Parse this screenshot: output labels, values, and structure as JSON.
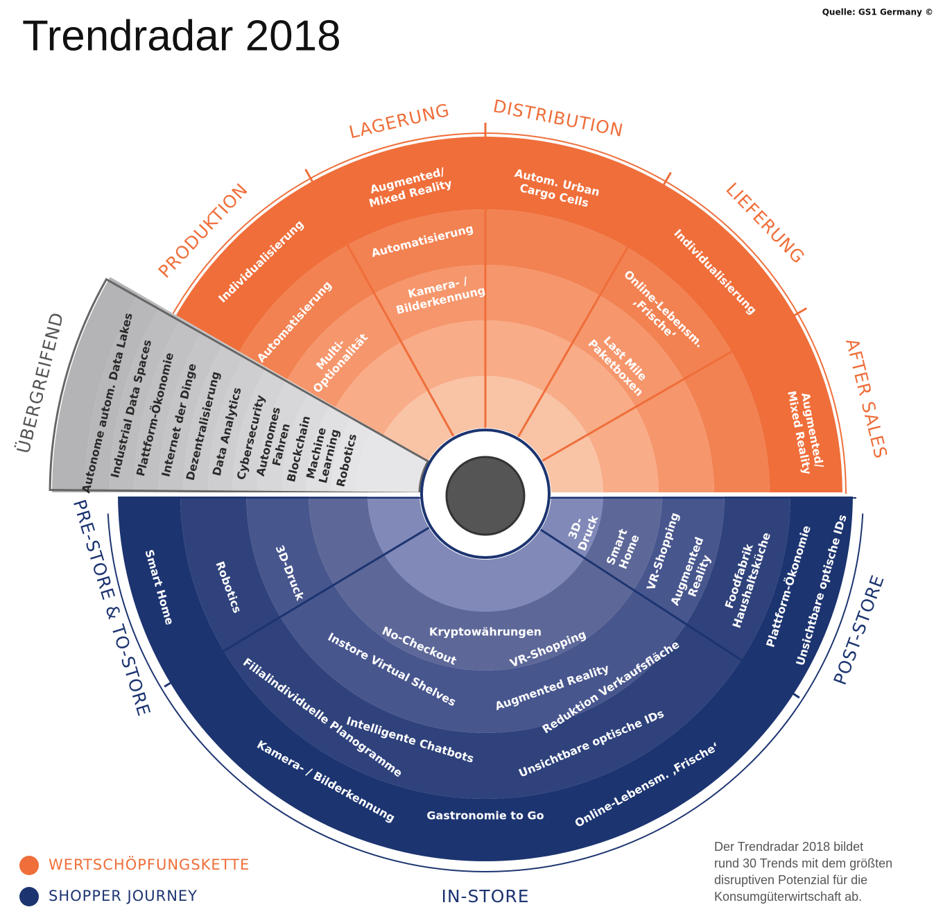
{
  "header": {
    "title": "Trendradar 2018",
    "source": "Quelle: GS1 Germany ©"
  },
  "value_chain": [
    {
      "label": "PRODUKTION",
      "trends": [
        [
          "Individualisierung"
        ],
        [
          "Automatisierung"
        ],
        [
          "Multi-",
          "Optionalität"
        ]
      ]
    },
    {
      "label": "LAGERUNG",
      "trends": [
        [
          "Augmented/",
          "Mixed Reality"
        ],
        [
          "Automatisierung"
        ],
        [
          "Kamera- /",
          "Bilderkennung"
        ]
      ]
    },
    {
      "label": "DISTRIBUTION",
      "trends": [
        [
          "Autom. Urban",
          "Cargo Cells"
        ]
      ]
    },
    {
      "label": "LIEFERUNG",
      "trends": [
        [
          "Individualisierung"
        ],
        [
          "Online-Lebensm.",
          "‚Frische‘"
        ],
        [
          "Last Mile",
          "Paketboxen"
        ]
      ]
    },
    {
      "label": "AFTER SALES",
      "trends": [
        [
          "Augmented/",
          "Mixed Reality"
        ]
      ]
    }
  ],
  "cross_cutting": {
    "label": "ÜBERGREIFEND",
    "trends": [
      [
        "Autonome autom. Data Lakes"
      ],
      [
        "Industrial Data Spaces"
      ],
      [
        "Plattform-Ökonomie"
      ],
      [
        "Internet der Dinge"
      ],
      [
        "Dezentralisierung"
      ],
      [
        "Data Analytics"
      ],
      [
        "Cybersecurity"
      ],
      [
        "Autonomes",
        "Fahren"
      ],
      [
        "Blockchain"
      ],
      [
        "Machine",
        "Learning"
      ],
      [
        "Robotics"
      ]
    ]
  },
  "shopper_journey": [
    {
      "label": "PRE-STORE & TO-STORE",
      "trends": [
        [
          "Smart Home"
        ],
        [
          "Robotics"
        ],
        [
          "3D-Druck"
        ]
      ]
    },
    {
      "label": "IN-STORE",
      "trends": [
        [
          "Kryptowährungen"
        ],
        [
          "No-Checkout"
        ],
        [
          "VR-Shopping"
        ],
        [
          "Instore Virtual Shelves"
        ],
        [
          "Augmented Reality"
        ],
        [
          "Reduktion Verkaufsfläche"
        ],
        [
          "Intelligente Chatbots"
        ],
        [
          "Filialindividuelle Planogramme"
        ],
        [
          "Unsichtbare optische IDs"
        ],
        [
          "Kamera- / Bilderkennung"
        ],
        [
          "Gastronomie to Go"
        ],
        [
          "Online-Lebensm. ‚Frische‘"
        ]
      ]
    },
    {
      "label": "POST-STORE",
      "trends": [
        [
          "3D-",
          "Druck"
        ],
        [
          "Smart",
          "Home"
        ],
        [
          "VR-Shopping"
        ],
        [
          "Augmented",
          "Reality"
        ],
        [
          "Foodfabrik",
          "Haushaltsküche"
        ],
        [
          "Plattform-Ökonomie"
        ],
        [
          "Unsichtbare optische IDs"
        ]
      ]
    }
  ],
  "legend": [
    {
      "label": "WERTSCHÖPFUNGSKETTE",
      "color": "#ef6e3a"
    },
    {
      "label": "SHOPPER JOURNEY",
      "color": "#1c3470"
    }
  ],
  "note": [
    "Der Trendradar 2018 bildet",
    "rund 30 Trends mit dem größten",
    "disruptiven Potenzial für die",
    "Konsumgüterwirtschaft ab."
  ]
}
